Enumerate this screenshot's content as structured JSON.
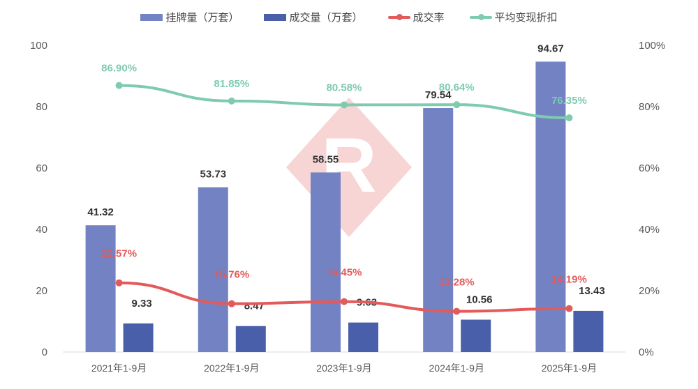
{
  "chart_data": {
    "type": "bar",
    "categories": [
      "2021年1-9月",
      "2022年1-9月",
      "2023年1-9月",
      "2024年1-9月",
      "2025年1-9月"
    ],
    "series": [
      {
        "name": "挂牌量（万套）",
        "type": "bar",
        "axis": "left",
        "color": "#7282c2",
        "values": [
          41.32,
          53.73,
          58.55,
          79.54,
          94.67
        ],
        "labels": [
          "41.32",
          "53.73",
          "58.55",
          "79.54",
          "94.67"
        ]
      },
      {
        "name": "成交量（万套）",
        "type": "bar",
        "axis": "left",
        "color": "#4a5faa",
        "values": [
          9.33,
          8.47,
          9.63,
          10.56,
          13.43
        ],
        "labels": [
          "9.33",
          "8.47",
          "9.63",
          "10.56",
          "13.43"
        ]
      },
      {
        "name": "成交率",
        "type": "line",
        "axis": "right",
        "color": "#e35a5a",
        "values": [
          22.57,
          15.76,
          16.45,
          13.28,
          14.19
        ],
        "labels": [
          "22.57%",
          "15.76%",
          "16.45%",
          "13.28%",
          "14.19%"
        ]
      },
      {
        "name": "平均变现折扣",
        "type": "line",
        "axis": "right",
        "color": "#7ecbb0",
        "values": [
          86.9,
          81.85,
          80.58,
          80.64,
          76.35
        ],
        "labels": [
          "86.90%",
          "81.85%",
          "80.58%",
          "80.64%",
          "76.35%"
        ]
      }
    ],
    "ylim": [
      0,
      100
    ],
    "y_ticks": [
      "0",
      "20",
      "40",
      "60",
      "80",
      "100"
    ],
    "y2lim": [
      0,
      100
    ],
    "y2_ticks": [
      "0%",
      "20%",
      "40%",
      "60%",
      "80%",
      "100%"
    ],
    "grid": false,
    "legend": "top"
  }
}
